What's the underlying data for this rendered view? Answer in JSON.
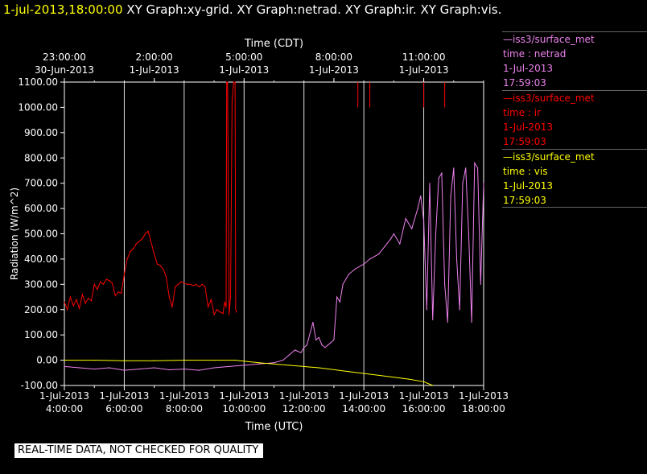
{
  "header": {
    "timestamp": "1-jul-2013,18:00:00",
    "graph_titles": "XY Graph:xy-grid.  XY Graph:netrad.  XY Graph:ir.  XY Graph:vis."
  },
  "legend": [
    {
      "source": "iss3/surface_met",
      "series": "time : netrad",
      "date": "1-Jul-2013",
      "time": "17:59:03",
      "color": "#ee82ee"
    },
    {
      "source": "iss3/surface_met",
      "series": "time : ir",
      "date": "1-Jul-2013",
      "time": "17:59:03",
      "color": "#ff0000"
    },
    {
      "source": "iss3/surface_met",
      "series": "time : vis",
      "date": "1-Jul-2013",
      "time": "17:59:03",
      "color": "#ffff00"
    }
  ],
  "notice": "REAL-TIME DATA, NOT CHECKED FOR QUALITY",
  "chart_data": {
    "type": "line",
    "xlabel_bottom": "Time (UTC)",
    "xlabel_top": "Time (CDT)",
    "ylabel": "Radiation (W/m^2)",
    "xlim": [
      "1-Jul-2013 04:00:00",
      "1-Jul-2013 18:00:00"
    ],
    "ylim": [
      -100,
      1100
    ],
    "grid": true,
    "bottom_ticks": [
      {
        "date": "1-Jul-2013",
        "time": "4:00:00"
      },
      {
        "date": "1-Jul-2013",
        "time": "6:00:00"
      },
      {
        "date": "1-Jul-2013",
        "time": "8:00:00"
      },
      {
        "date": "1-Jul-2013",
        "time": "10:00:00"
      },
      {
        "date": "1-Jul-2013",
        "time": "12:00:00"
      },
      {
        "date": "1-Jul-2013",
        "time": "14:00:00"
      },
      {
        "date": "1-Jul-2013",
        "time": "16:00:00"
      },
      {
        "date": "1-Jul-2013",
        "time": "18:00:00"
      }
    ],
    "top_ticks": [
      {
        "time": "23:00:00",
        "date": "30-Jun-2013",
        "utc_hour": 4
      },
      {
        "time": "2:00:00",
        "date": "1-Jul-2013",
        "utc_hour": 7
      },
      {
        "time": "5:00:00",
        "date": "1-Jul-2013",
        "utc_hour": 10
      },
      {
        "time": "8:00:00",
        "date": "1-Jul-2013",
        "utc_hour": 13
      },
      {
        "time": "11:00:00",
        "date": "1-Jul-2013",
        "utc_hour": 16
      }
    ],
    "y_ticks": [
      "-100.00",
      "0.00",
      "100.00",
      "200.00",
      "300.00",
      "400.00",
      "500.00",
      "600.00",
      "700.00",
      "800.00",
      "900.00",
      "1000.00",
      "1100.00"
    ],
    "series": [
      {
        "name": "time : ir",
        "color": "#ff0000",
        "x_hours_utc": [
          4.0,
          4.1,
          4.2,
          4.3,
          4.4,
          4.5,
          4.6,
          4.7,
          4.8,
          4.9,
          5.0,
          5.1,
          5.2,
          5.3,
          5.4,
          5.5,
          5.6,
          5.7,
          5.8,
          5.9,
          6.0,
          6.1,
          6.2,
          6.3,
          6.4,
          6.5,
          6.6,
          6.7,
          6.8,
          7.0,
          7.1,
          7.2,
          7.3,
          7.4,
          7.5,
          7.6,
          7.7,
          7.8,
          7.9,
          8.0,
          8.1,
          8.2,
          8.3,
          8.4,
          8.5,
          8.6,
          8.7,
          8.8,
          8.9,
          9.0,
          9.1,
          9.2,
          9.3,
          9.35,
          9.4,
          9.42,
          9.45,
          9.5,
          9.55,
          9.6,
          9.65,
          9.7,
          9.72,
          9.75
        ],
        "values": [
          230,
          200,
          250,
          215,
          240,
          205,
          260,
          225,
          245,
          235,
          300,
          280,
          310,
          300,
          320,
          315,
          305,
          255,
          270,
          265,
          340,
          400,
          430,
          440,
          460,
          470,
          480,
          500,
          510,
          420,
          380,
          375,
          360,
          330,
          250,
          210,
          290,
          300,
          310,
          305,
          300,
          300,
          295,
          300,
          290,
          300,
          290,
          210,
          240,
          180,
          200,
          190,
          185,
          230,
          210,
          1100,
          1100,
          180,
          250,
          1020,
          1100,
          1150,
          200,
          190
        ]
      },
      {
        "name": "time : netrad",
        "color": "#ee82ee",
        "x_hours_utc": [
          4.0,
          4.5,
          5.0,
          5.5,
          6.0,
          6.5,
          7.0,
          7.5,
          8.0,
          8.5,
          9.0,
          9.5,
          10.0,
          10.5,
          11.0,
          11.3,
          11.5,
          11.7,
          11.9,
          12.0,
          12.1,
          12.3,
          12.4,
          12.5,
          12.6,
          12.7,
          12.8,
          12.9,
          13.0,
          13.1,
          13.2,
          13.3,
          13.5,
          13.7,
          14.0,
          14.2,
          14.5,
          14.7,
          14.9,
          15.0,
          15.2,
          15.4,
          15.6,
          15.8,
          15.9,
          16.0,
          16.1,
          16.2,
          16.3,
          16.4,
          16.5,
          16.6,
          16.7,
          16.8,
          16.9,
          17.0,
          17.1,
          17.2,
          17.3,
          17.4,
          17.5,
          17.6,
          17.7,
          17.8,
          17.9,
          18.0
        ],
        "values": [
          -25,
          -30,
          -35,
          -30,
          -40,
          -35,
          -30,
          -38,
          -35,
          -40,
          -30,
          -25,
          -20,
          -15,
          -10,
          0,
          20,
          40,
          30,
          50,
          60,
          150,
          80,
          90,
          60,
          50,
          60,
          70,
          80,
          250,
          230,
          300,
          340,
          360,
          380,
          400,
          420,
          450,
          480,
          500,
          460,
          560,
          520,
          600,
          650,
          550,
          200,
          700,
          160,
          500,
          720,
          740,
          300,
          150,
          650,
          760,
          400,
          200,
          700,
          760,
          500,
          150,
          780,
          760,
          300,
          700
        ]
      },
      {
        "name": "time : vis",
        "color": "#ffff00",
        "x_hours_utc": [
          4.0,
          5.0,
          6.0,
          7.0,
          8.0,
          9.0,
          9.7,
          10.5,
          11.5,
          12.5,
          13.5,
          14.5,
          15.5,
          16.0,
          16.3
        ],
        "values": [
          0,
          0,
          -2,
          -2,
          0,
          0,
          0,
          -10,
          -20,
          -30,
          -45,
          -60,
          -75,
          -85,
          -100
        ]
      }
    ]
  }
}
